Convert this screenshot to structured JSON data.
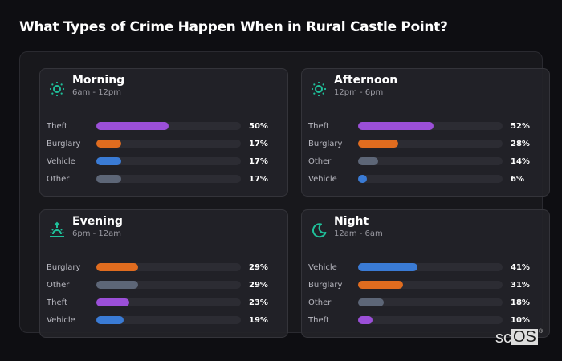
{
  "title": "What Types of Crime Happen When in Rural Castle Point?",
  "colors": {
    "Theft": "#9b4fd8",
    "Burglary": "#e06c1f",
    "Vehicle": "#3a7bd5",
    "Other": "#5d6677",
    "icon": "#1fc09a"
  },
  "cards": [
    {
      "icon": "sun-icon",
      "title": "Morning",
      "subtitle": "6am - 12pm",
      "rows": [
        {
          "label": "Theft",
          "value": 50,
          "pct": "50%"
        },
        {
          "label": "Burglary",
          "value": 17,
          "pct": "17%"
        },
        {
          "label": "Vehicle",
          "value": 17,
          "pct": "17%"
        },
        {
          "label": "Other",
          "value": 17,
          "pct": "17%"
        }
      ]
    },
    {
      "icon": "sun-icon",
      "title": "Afternoon",
      "subtitle": "12pm - 6pm",
      "rows": [
        {
          "label": "Theft",
          "value": 52,
          "pct": "52%"
        },
        {
          "label": "Burglary",
          "value": 28,
          "pct": "28%"
        },
        {
          "label": "Other",
          "value": 14,
          "pct": "14%"
        },
        {
          "label": "Vehicle",
          "value": 6,
          "pct": "6%"
        }
      ]
    },
    {
      "icon": "sunset-icon",
      "title": "Evening",
      "subtitle": "6pm - 12am",
      "rows": [
        {
          "label": "Burglary",
          "value": 29,
          "pct": "29%"
        },
        {
          "label": "Other",
          "value": 29,
          "pct": "29%"
        },
        {
          "label": "Theft",
          "value": 23,
          "pct": "23%"
        },
        {
          "label": "Vehicle",
          "value": 19,
          "pct": "19%"
        }
      ]
    },
    {
      "icon": "moon-icon",
      "title": "Night",
      "subtitle": "12am - 6am",
      "rows": [
        {
          "label": "Vehicle",
          "value": 41,
          "pct": "41%"
        },
        {
          "label": "Burglary",
          "value": 31,
          "pct": "31%"
        },
        {
          "label": "Other",
          "value": 18,
          "pct": "18%"
        },
        {
          "label": "Theft",
          "value": 10,
          "pct": "10%"
        }
      ]
    }
  ],
  "watermark": {
    "prefix": "sc",
    "boxed": "OS",
    "mark": "®"
  },
  "chart_data": [
    {
      "type": "bar",
      "orientation": "horizontal",
      "title": "Morning",
      "subtitle": "6am - 12pm",
      "categories": [
        "Theft",
        "Burglary",
        "Vehicle",
        "Other"
      ],
      "values": [
        50,
        17,
        17,
        17
      ],
      "unit": "%",
      "xlim": [
        0,
        100
      ]
    },
    {
      "type": "bar",
      "orientation": "horizontal",
      "title": "Afternoon",
      "subtitle": "12pm - 6pm",
      "categories": [
        "Theft",
        "Burglary",
        "Other",
        "Vehicle"
      ],
      "values": [
        52,
        28,
        14,
        6
      ],
      "unit": "%",
      "xlim": [
        0,
        100
      ]
    },
    {
      "type": "bar",
      "orientation": "horizontal",
      "title": "Evening",
      "subtitle": "6pm - 12am",
      "categories": [
        "Burglary",
        "Other",
        "Theft",
        "Vehicle"
      ],
      "values": [
        29,
        29,
        23,
        19
      ],
      "unit": "%",
      "xlim": [
        0,
        100
      ]
    },
    {
      "type": "bar",
      "orientation": "horizontal",
      "title": "Night",
      "subtitle": "12am - 6am",
      "categories": [
        "Vehicle",
        "Burglary",
        "Other",
        "Theft"
      ],
      "values": [
        41,
        31,
        18,
        10
      ],
      "unit": "%",
      "xlim": [
        0,
        100
      ]
    }
  ]
}
